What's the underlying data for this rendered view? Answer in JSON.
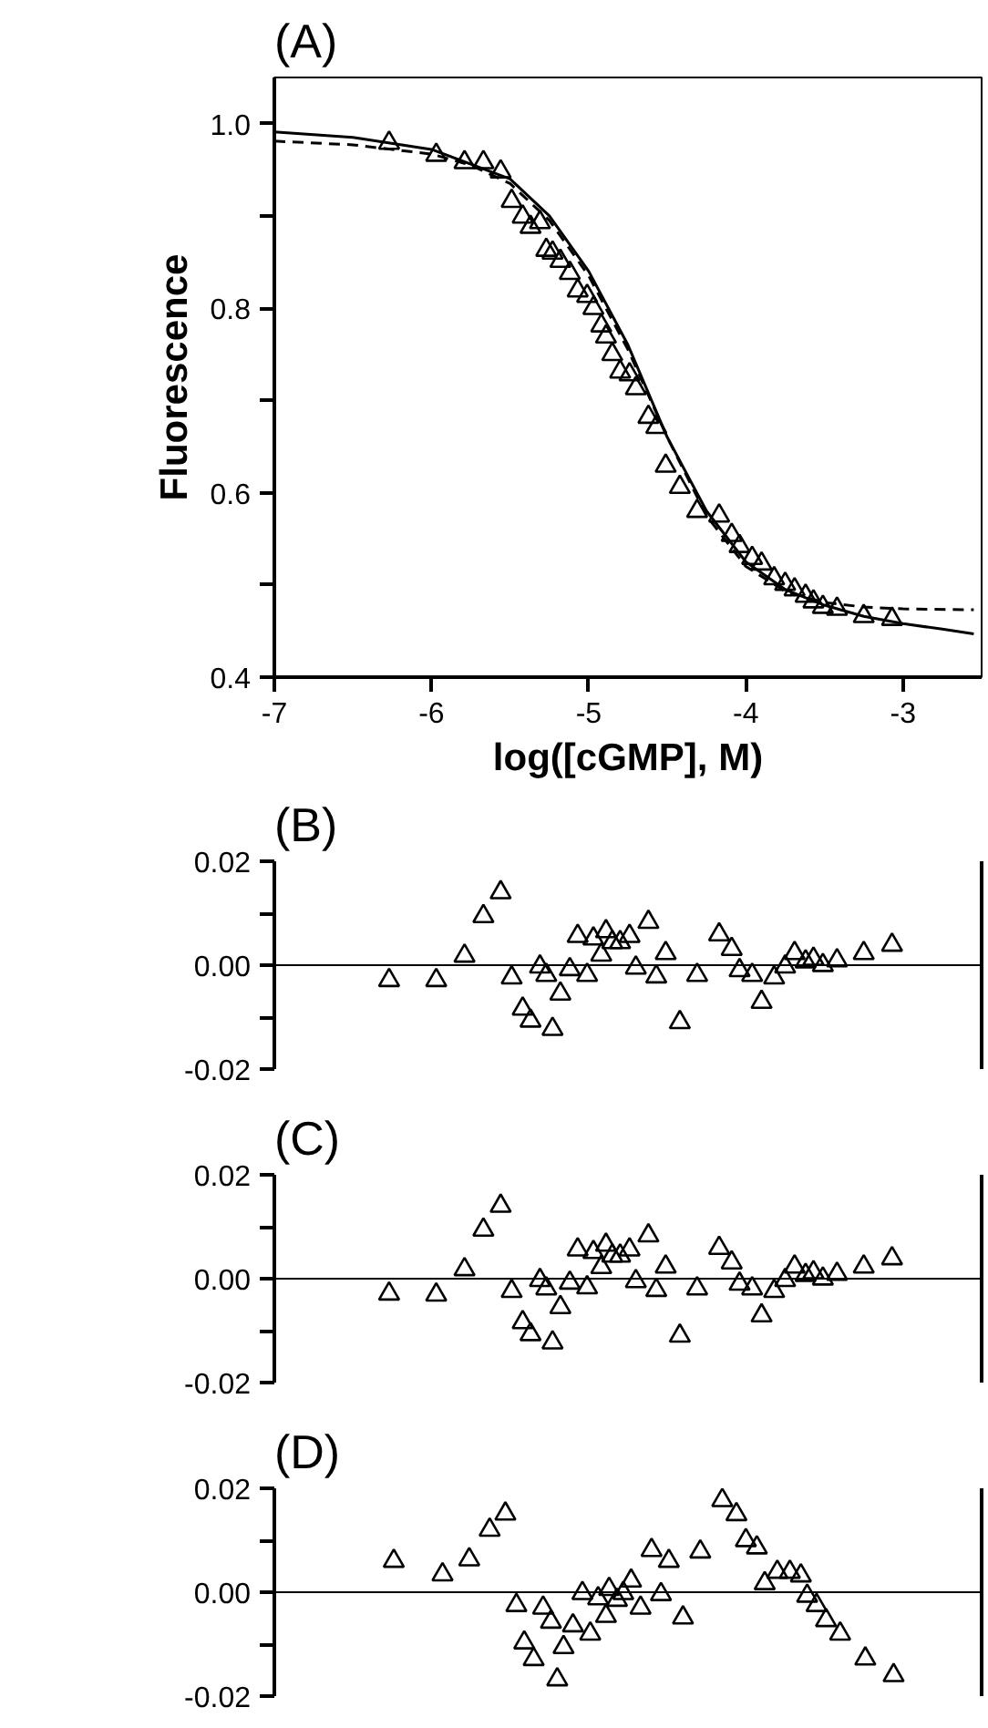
{
  "chart_data": [
    {
      "type": "scatter",
      "title": "(A)",
      "xlabel": "log([cGMP], M)",
      "ylabel": "Fluorescence",
      "xlim": [
        -7,
        -2.5
      ],
      "ylim": [
        0.4,
        1.05
      ],
      "xticks": [
        -7,
        -6,
        -5,
        -4,
        -3
      ],
      "yticks": [
        0.4,
        {
          "value": 0.5,
          "label": null
        },
        0.6,
        {
          "value": 0.7,
          "label": null
        },
        0.8,
        {
          "value": 0.9,
          "label": null
        },
        {
          "value": 1.0,
          "label": "1.0"
        }
      ],
      "series": [
        {
          "type": "scatter",
          "marker": "triangle",
          "color": "#000000",
          "x": [
            -6.27,
            -5.97,
            -5.79,
            -5.67,
            -5.56,
            -5.49,
            -5.42,
            -5.37,
            -5.31,
            -5.27,
            -5.23,
            -5.18,
            -5.12,
            -5.07,
            -5.01,
            -4.97,
            -4.92,
            -4.89,
            -4.85,
            -4.8,
            -4.74,
            -4.7,
            -4.62,
            -4.57,
            -4.51,
            -4.42,
            -4.31,
            -4.17,
            -4.09,
            -4.04,
            -3.96,
            -3.9,
            -3.82,
            -3.75,
            -3.69,
            -3.62,
            -3.57,
            -3.51,
            -3.42,
            -3.25,
            -3.07
          ],
          "values": [
            0.979,
            0.966,
            0.958,
            0.958,
            0.948,
            0.916,
            0.899,
            0.888,
            0.893,
            0.863,
            0.86,
            0.851,
            0.838,
            0.819,
            0.813,
            0.8,
            0.781,
            0.769,
            0.75,
            0.731,
            0.728,
            0.713,
            0.682,
            0.671,
            0.629,
            0.606,
            0.58,
            0.575,
            0.554,
            0.542,
            0.529,
            0.523,
            0.507,
            0.501,
            0.495,
            0.488,
            0.482,
            0.476,
            0.474,
            0.466,
            0.463
          ]
        },
        {
          "type": "line",
          "line_style": "solid",
          "color": "#000000",
          "x": [
            -7,
            -6.5,
            -6,
            -5.5,
            -5.25,
            -5,
            -4.75,
            -4.5,
            -4.25,
            -4,
            -3.75,
            -3.5,
            -3.25,
            -3,
            -2.75,
            -2.55
          ],
          "values": [
            0.991,
            0.985,
            0.972,
            0.94,
            0.9,
            0.84,
            0.76,
            0.66,
            0.58,
            0.525,
            0.495,
            0.478,
            0.466,
            0.458,
            0.452,
            0.447
          ]
        },
        {
          "type": "line",
          "line_style": "dashed",
          "color": "#000000",
          "x": [
            -7,
            -6.5,
            -6,
            -5.75,
            -5.5,
            -5.25,
            -5,
            -4.75,
            -4.5,
            -4.25,
            -4,
            -3.75,
            -3.5,
            -3.25,
            -3,
            -2.55
          ],
          "values": [
            0.981,
            0.977,
            0.967,
            0.955,
            0.935,
            0.895,
            0.835,
            0.755,
            0.66,
            0.575,
            0.52,
            0.493,
            0.481,
            0.476,
            0.474,
            0.473
          ]
        }
      ]
    },
    {
      "type": "scatter",
      "title": "(B)",
      "marker": "triangle",
      "color": "#000000",
      "tick_labels": "y",
      "grid": false,
      "xlim": [
        -7,
        -2.5
      ],
      "ylim": [
        -0.02,
        0.02
      ],
      "yticks": [
        {
          "value": -0.02,
          "label": "-0.02"
        },
        {
          "value": -0.01,
          "label": null
        },
        {
          "value": 0,
          "label": "0.00"
        },
        {
          "value": 0.01,
          "label": null
        },
        {
          "value": 0.02,
          "label": "0.02"
        }
      ],
      "ref_lines": [
        {
          "axis": "y",
          "value": 0,
          "label": null
        }
      ],
      "x": [
        -6.27,
        -5.97,
        -5.79,
        -5.67,
        -5.56,
        -5.49,
        -5.42,
        -5.37,
        -5.31,
        -5.27,
        -5.23,
        -5.18,
        -5.12,
        -5.07,
        -5.01,
        -4.97,
        -4.92,
        -4.89,
        -4.85,
        -4.8,
        -4.74,
        -4.7,
        -4.62,
        -4.57,
        -4.51,
        -4.42,
        -4.31,
        -4.17,
        -4.09,
        -4.04,
        -3.96,
        -3.9,
        -3.82,
        -3.75,
        -3.69,
        -3.62,
        -3.57,
        -3.51,
        -3.42,
        -3.25,
        -3.07
      ],
      "values": [
        -0.0029,
        -0.0029,
        0.0018,
        0.0094,
        0.014,
        -0.0024,
        -0.0084,
        -0.0107,
        -0.0003,
        -0.0019,
        -0.0123,
        -0.0055,
        -0.0008,
        0.0056,
        -0.0019,
        0.0051,
        0.002,
        0.0065,
        0.0044,
        0.0044,
        0.0056,
        -0.0005,
        0.0083,
        -0.0022,
        0.0023,
        -0.011,
        -0.0019,
        0.0059,
        0.0031,
        -0.001,
        -0.0019,
        -0.0071,
        -0.0024,
        -0.0003,
        0.0023,
        0.0007,
        0.0012,
        0.0,
        0.0009,
        0.0023,
        0.0039
      ]
    },
    {
      "type": "scatter",
      "title": "(C)",
      "marker": "triangle",
      "color": "#000000",
      "tick_labels": "y",
      "grid": false,
      "xlim": [
        -7,
        -2.5
      ],
      "ylim": [
        -0.02,
        0.02
      ],
      "yticks": [
        {
          "value": -0.02,
          "label": "-0.02"
        },
        {
          "value": -0.01,
          "label": null
        },
        {
          "value": 0,
          "label": "0.00"
        },
        {
          "value": 0.01,
          "label": null
        },
        {
          "value": 0.02,
          "label": "0.02"
        }
      ],
      "ref_lines": [
        {
          "axis": "y",
          "value": 0,
          "label": null
        }
      ],
      "x": [
        -6.27,
        -5.97,
        -5.79,
        -5.67,
        -5.56,
        -5.49,
        -5.42,
        -5.37,
        -5.31,
        -5.27,
        -5.23,
        -5.18,
        -5.12,
        -5.07,
        -5.01,
        -4.97,
        -4.92,
        -4.89,
        -4.85,
        -4.8,
        -4.74,
        -4.7,
        -4.62,
        -4.57,
        -4.51,
        -4.42,
        -4.31,
        -4.17,
        -4.09,
        -4.04,
        -3.96,
        -3.9,
        -3.82,
        -3.75,
        -3.69,
        -3.62,
        -3.57,
        -3.51,
        -3.42,
        -3.25,
        -3.07
      ],
      "values": [
        -0.0029,
        -0.0031,
        0.0018,
        0.0094,
        0.014,
        -0.0024,
        -0.0084,
        -0.0107,
        -0.0003,
        -0.0019,
        -0.0123,
        -0.0055,
        -0.0008,
        0.0056,
        -0.0017,
        0.0051,
        0.0022,
        0.0065,
        0.0044,
        0.0044,
        0.0056,
        -0.0005,
        0.0083,
        -0.0022,
        0.0023,
        -0.011,
        -0.0019,
        0.0059,
        0.0031,
        -0.001,
        -0.0019,
        -0.0071,
        -0.0024,
        -0.0003,
        0.0023,
        0.0007,
        0.0012,
        0.0,
        0.0009,
        0.0023,
        0.0039
      ]
    },
    {
      "type": "scatter",
      "title": "(D)",
      "marker": "triangle",
      "color": "#000000",
      "tick_labels": "y",
      "grid": false,
      "xlim": [
        -7,
        -2.5
      ],
      "ylim": [
        -0.02,
        0.02
      ],
      "yticks": [
        {
          "value": -0.02,
          "label": "-0.02"
        },
        {
          "value": -0.01,
          "label": null
        },
        {
          "value": 0,
          "label": "0.00"
        },
        {
          "value": 0.01,
          "label": null
        },
        {
          "value": 0.02,
          "label": "0.02"
        }
      ],
      "ref_lines": [
        {
          "axis": "y",
          "value": 0,
          "label": null
        }
      ],
      "x": [
        -6.24,
        -5.93,
        -5.76,
        -5.63,
        -5.53,
        -5.46,
        -5.41,
        -5.35,
        -5.29,
        -5.24,
        -5.2,
        -5.16,
        -5.1,
        -5.04,
        -4.99,
        -4.94,
        -4.89,
        -4.87,
        -4.82,
        -4.78,
        -4.73,
        -4.67,
        -4.6,
        -4.54,
        -4.49,
        -4.4,
        -4.29,
        -4.15,
        -4.06,
        -4.0,
        -3.93,
        -3.88,
        -3.8,
        -3.72,
        -3.65,
        -3.61,
        -3.55,
        -3.49,
        -3.4,
        -3.24,
        -3.06
      ],
      "values": [
        0.006,
        0.0034,
        0.0063,
        0.012,
        0.0151,
        -0.0025,
        -0.0097,
        -0.0129,
        -0.003,
        -0.0057,
        -0.0168,
        -0.0106,
        -0.0064,
        -0.0002,
        -0.008,
        -0.0012,
        -0.0046,
        0.0006,
        -0.0015,
        -0.0002,
        0.0022,
        -0.003,
        0.0081,
        -0.0004,
        0.006,
        -0.0049,
        0.0078,
        0.0177,
        0.015,
        0.01,
        0.0086,
        0.0017,
        0.0039,
        0.0039,
        0.0032,
        -0.0007,
        -0.0025,
        -0.0054,
        -0.008,
        -0.0128,
        -0.016
      ]
    }
  ]
}
